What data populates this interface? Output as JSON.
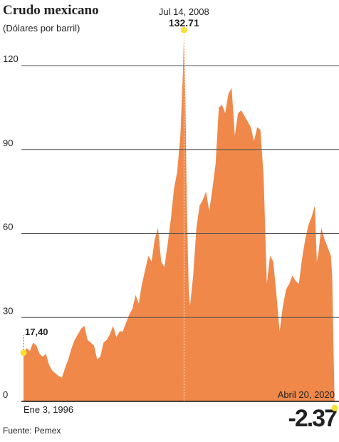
{
  "chart_data": {
    "type": "area",
    "title": "Crudo mexicano",
    "subtitle": "(Dólares por barril)",
    "source": "Fuente: Pemex",
    "color": "#f0884a",
    "grid": true,
    "xlim": [
      1996.0,
      2020.3
    ],
    "ylim": [
      0,
      120
    ],
    "yticks": [
      0,
      30,
      60,
      90,
      120
    ],
    "x": [
      1996.0,
      1996.25,
      1996.5,
      1996.75,
      1997.0,
      1997.25,
      1997.5,
      1997.75,
      1998.0,
      1998.25,
      1998.5,
      1998.75,
      1999.0,
      1999.25,
      1999.5,
      1999.75,
      2000.0,
      2000.25,
      2000.5,
      2000.75,
      2001.0,
      2001.25,
      2001.5,
      2001.75,
      2002.0,
      2002.25,
      2002.5,
      2002.75,
      2003.0,
      2003.25,
      2003.5,
      2003.75,
      2004.0,
      2004.25,
      2004.5,
      2004.75,
      2005.0,
      2005.25,
      2005.5,
      2005.75,
      2006.0,
      2006.25,
      2006.5,
      2006.75,
      2007.0,
      2007.25,
      2007.5,
      2007.75,
      2008.0,
      2008.25,
      2008.45,
      2008.53,
      2008.65,
      2008.75,
      2008.9,
      2009.0,
      2009.25,
      2009.5,
      2009.75,
      2010.0,
      2010.25,
      2010.5,
      2010.75,
      2011.0,
      2011.25,
      2011.5,
      2011.75,
      2012.0,
      2012.25,
      2012.5,
      2012.75,
      2013.0,
      2013.25,
      2013.5,
      2013.75,
      2014.0,
      2014.25,
      2014.5,
      2014.75,
      2015.0,
      2015.25,
      2015.5,
      2015.75,
      2016.0,
      2016.25,
      2016.5,
      2016.75,
      2017.0,
      2017.25,
      2017.5,
      2017.75,
      2018.0,
      2018.25,
      2018.5,
      2018.75,
      2018.9,
      2019.0,
      2019.25,
      2019.5,
      2019.75,
      2020.0,
      2020.1,
      2020.2,
      2020.3
    ],
    "values": [
      17.4,
      19,
      18,
      21,
      20,
      17,
      16,
      17,
      13,
      11,
      10,
      9,
      8.5,
      12,
      15,
      19,
      22,
      24,
      26,
      27,
      22,
      21,
      20,
      15,
      16,
      21,
      22,
      24,
      27,
      23,
      25,
      25,
      28,
      31,
      33,
      38,
      35,
      42,
      47,
      52,
      50,
      58,
      62,
      50,
      48,
      56,
      65,
      76,
      82,
      95,
      118,
      132.71,
      105,
      70,
      40,
      34,
      45,
      62,
      70,
      72,
      75,
      68,
      76,
      85,
      105,
      106,
      103,
      110,
      112,
      95,
      103,
      104,
      102,
      100,
      98,
      93,
      98,
      97,
      80,
      42,
      52,
      50,
      38,
      25,
      34,
      40,
      42,
      45,
      43,
      42,
      51,
      58,
      63,
      66,
      70,
      50,
      52,
      62,
      58,
      55,
      52,
      45,
      20,
      -2.37
    ],
    "annotations": [
      {
        "date": "Ene 3, 1996",
        "x": 1996.0,
        "y": 17.4,
        "value_label": "17,40"
      },
      {
        "date": "Jul 14, 2008",
        "x": 2008.53,
        "y": 132.71,
        "value_label": "132.71"
      },
      {
        "date": "Abril 20, 2020",
        "x": 2020.3,
        "y": -2.37,
        "value_label": "-2.37"
      }
    ]
  }
}
